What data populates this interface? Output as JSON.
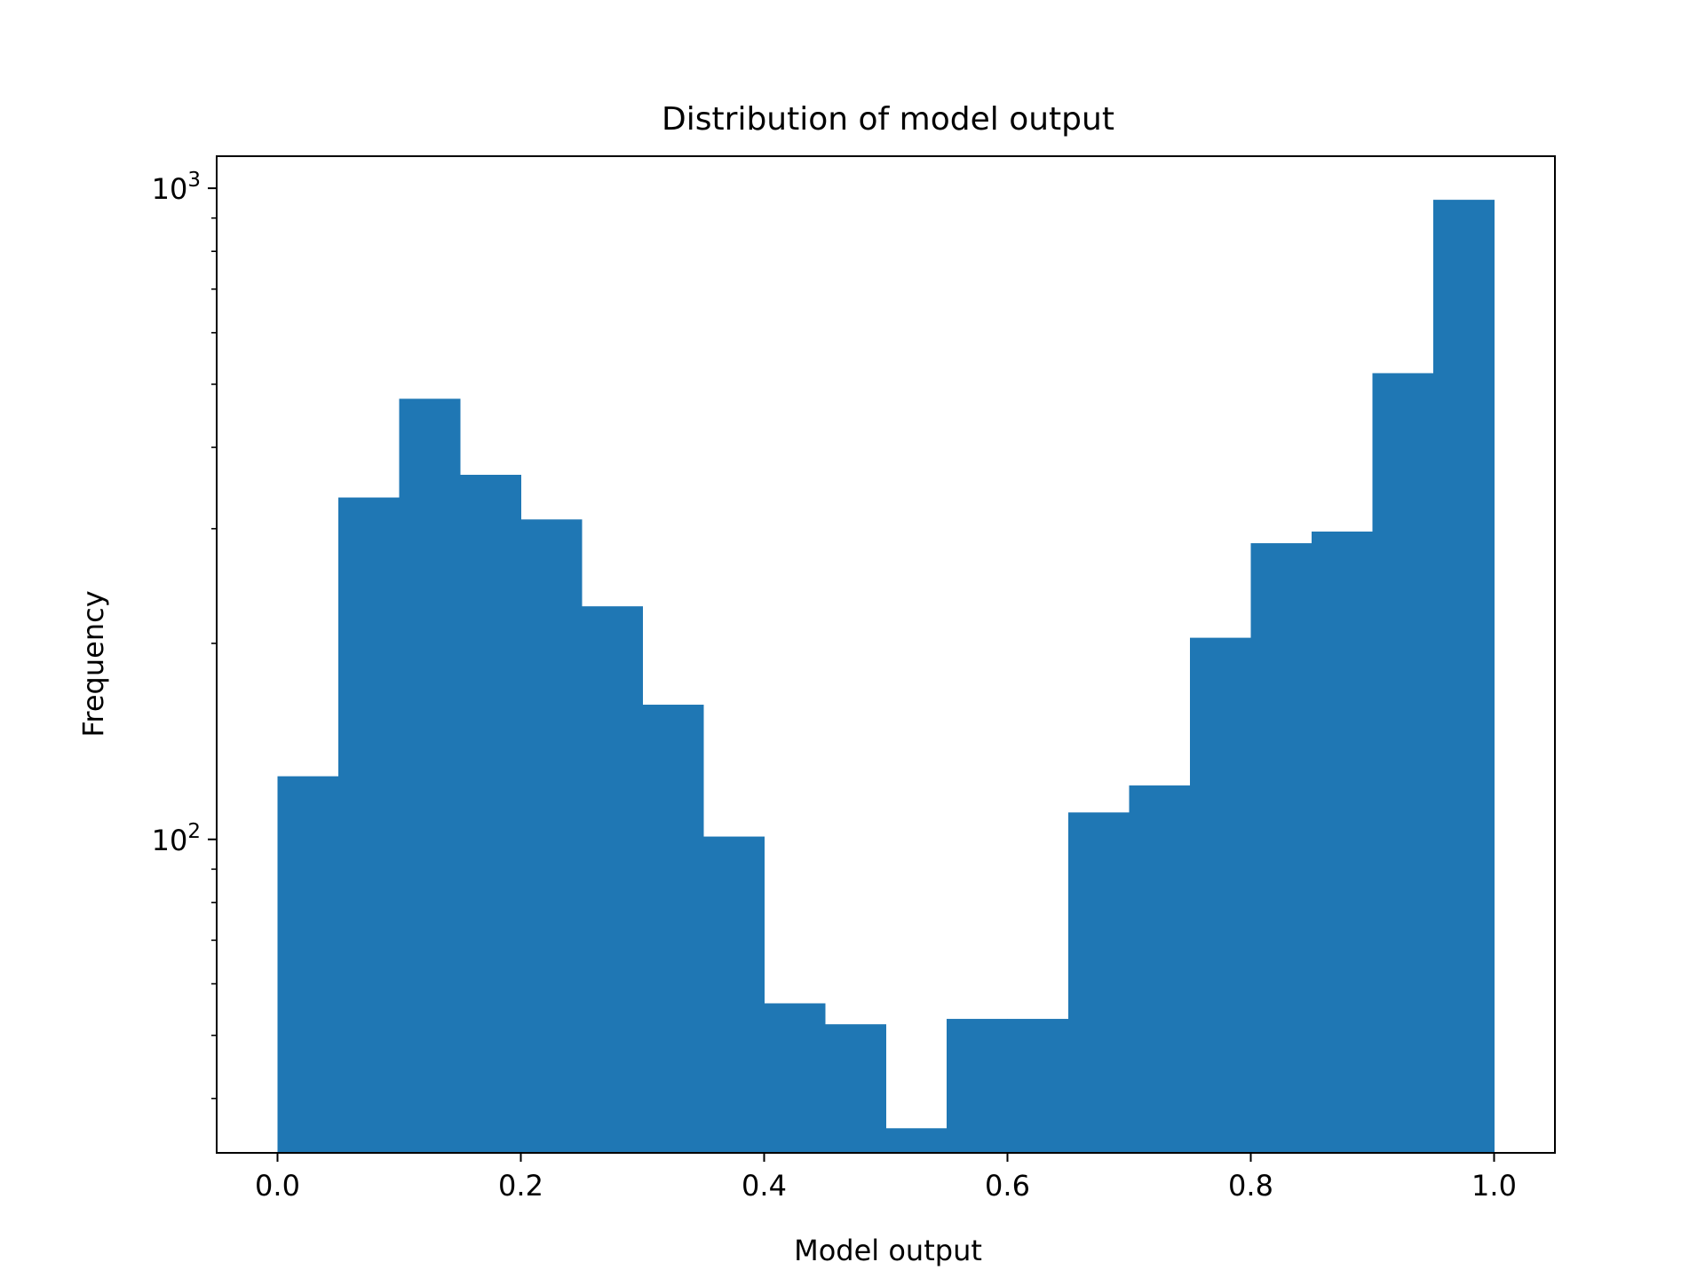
{
  "chart_data": {
    "type": "bar",
    "title": "Distribution of model output",
    "xlabel": "Model output",
    "ylabel": "Frequency",
    "y_scale": "log",
    "bin_edges": [
      0.0,
      0.05,
      0.1,
      0.15,
      0.2,
      0.25,
      0.3,
      0.35,
      0.4,
      0.45,
      0.5,
      0.55,
      0.6,
      0.65,
      0.7,
      0.75,
      0.8,
      0.85,
      0.9,
      0.95,
      1.0
    ],
    "values": [
      125,
      335,
      475,
      363,
      310,
      228,
      161,
      101,
      56,
      52,
      36,
      53,
      53,
      110,
      121,
      204,
      285,
      297,
      520,
      960
    ],
    "xlim": [
      -0.05,
      1.05
    ],
    "ylim": [
      33,
      1120
    ],
    "x_ticks": [
      {
        "value": 0.0,
        "label": "0.0"
      },
      {
        "value": 0.2,
        "label": "0.2"
      },
      {
        "value": 0.4,
        "label": "0.4"
      },
      {
        "value": 0.6,
        "label": "0.6"
      },
      {
        "value": 0.8,
        "label": "0.8"
      },
      {
        "value": 1.0,
        "label": "1.0"
      }
    ],
    "y_major_ticks": [
      {
        "value": 100,
        "base": "10",
        "exp": "2"
      },
      {
        "value": 1000,
        "base": "10",
        "exp": "3"
      }
    ],
    "y_minor_ticks": [
      40,
      50,
      60,
      70,
      80,
      90,
      200,
      300,
      400,
      500,
      600,
      700,
      800,
      900
    ],
    "grid": false,
    "legend": "none",
    "bar_color": "#1f77b4"
  }
}
